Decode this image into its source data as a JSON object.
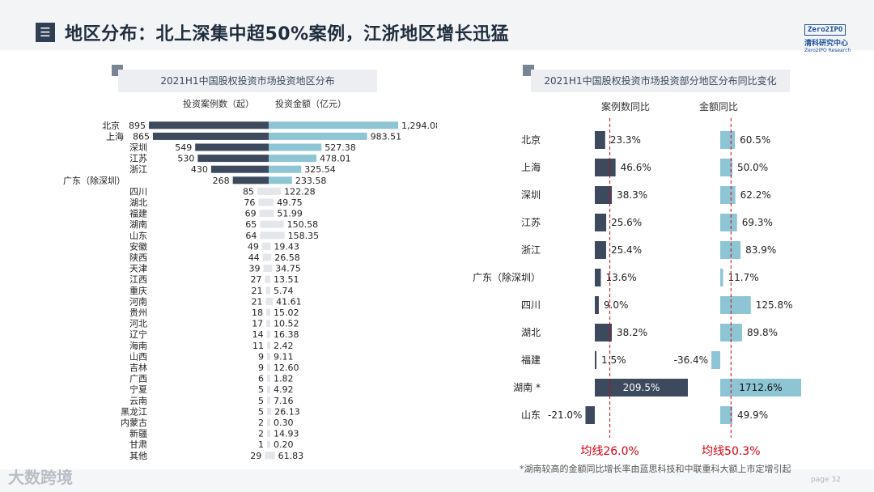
{
  "header": {
    "title": "地区分布：北上深集中超50%案例，江浙地区增长迅猛",
    "menu_icon": "menu-icon",
    "logo_box": "Zero2IPO",
    "logo_cn": "清科研究中心",
    "logo_en": "Zero2IPO Research"
  },
  "footer": {
    "watermark": "大数跨境",
    "page": "page 32",
    "note": "*湖南较高的金额同比增长率由蓝思科技和中联重科大额上市定增引起"
  },
  "colors": {
    "dark": "#3d4a5e",
    "light": "#8ec5d4",
    "faint": "#e3e6ea",
    "red": "#d7000f"
  },
  "chart_data": [
    {
      "type": "bar",
      "title": "2021H1中国股权投资市场投资地区分布",
      "orientation": "horizontal-diverging",
      "legend": [
        "投资案例数（起）",
        "投资金额（亿元）"
      ],
      "categories": [
        "北京",
        "上海",
        "深圳",
        "江苏",
        "浙江",
        "广东（除深圳）",
        "四川",
        "湖北",
        "福建",
        "湖南",
        "山东",
        "安徽",
        "陕西",
        "天津",
        "江西",
        "重庆",
        "河南",
        "贵州",
        "河北",
        "辽宁",
        "海南",
        "山西",
        "吉林",
        "广西",
        "宁夏",
        "云南",
        "黑龙江",
        "内蒙古",
        "新疆",
        "甘肃",
        "其他"
      ],
      "series": [
        {
          "name": "投资案例数（起）",
          "values": [
            895,
            865,
            549,
            530,
            430,
            268,
            85,
            76,
            69,
            65,
            64,
            49,
            44,
            39,
            27,
            21,
            21,
            18,
            17,
            14,
            11,
            9,
            9,
            6,
            5,
            5,
            5,
            2,
            2,
            1,
            29
          ],
          "labels": [
            "895",
            "865",
            "549",
            "530",
            "430",
            "268",
            "85",
            "76",
            "69",
            "65",
            "64",
            "49",
            "44",
            "39",
            "27",
            "21",
            "21",
            "18",
            "17",
            "14",
            "11",
            "9",
            "9",
            "6",
            "5",
            "5",
            "5",
            "2",
            "2",
            "1",
            "29"
          ]
        },
        {
          "name": "投资金额（亿元）",
          "values": [
            1294.08,
            983.51,
            527.38,
            478.01,
            325.54,
            233.58,
            122.28,
            49.75,
            51.99,
            150.58,
            158.35,
            19.43,
            26.58,
            34.75,
            13.51,
            5.74,
            41.61,
            15.02,
            10.52,
            16.38,
            2.42,
            9.11,
            12.6,
            1.82,
            4.92,
            7.16,
            26.13,
            0.3,
            14.93,
            0.2,
            61.83
          ],
          "labels": [
            "1,294.08",
            "983.51",
            "527.38",
            "478.01",
            "325.54",
            "233.58",
            "122.28",
            "49.75",
            "51.99",
            "150.58",
            "158.35",
            "19.43",
            "26.58",
            "34.75",
            "13.51",
            "5.74",
            "41.61",
            "15.02",
            "10.52",
            "16.38",
            "2.42",
            "9.11",
            "12.60",
            "1.82",
            "4.92",
            "7.16",
            "26.13",
            "0.30",
            "14.93",
            "0.20",
            "61.83"
          ]
        }
      ]
    },
    {
      "type": "bar",
      "title": "2021H1中国股权投资市场投资部分地区分布同比变化",
      "orientation": "horizontal",
      "categories": [
        "北京",
        "上海",
        "深圳",
        "江苏",
        "浙江",
        "广东（除深圳）",
        "四川",
        "湖北",
        "福建",
        "湖南 *",
        "山东"
      ],
      "series": [
        {
          "name": "案例数同比",
          "values": [
            23.3,
            46.6,
            38.3,
            25.6,
            25.4,
            13.6,
            9.0,
            38.2,
            1.5,
            209.5,
            -21.0
          ],
          "labels": [
            "23.3%",
            "46.6%",
            "38.3%",
            "25.6%",
            "25.4%",
            "13.6%",
            "9.0%",
            "38.2%",
            "1.5%",
            "209.5%",
            "-21.0%"
          ],
          "average": 26.0,
          "average_label": "均线26.0%"
        },
        {
          "name": "金额同比",
          "values": [
            60.5,
            50.0,
            62.2,
            69.3,
            83.9,
            11.7,
            125.8,
            89.8,
            -36.4,
            1712.6,
            49.9
          ],
          "labels": [
            "60.5%",
            "50.0%",
            "62.2%",
            "69.3%",
            "83.9%",
            "11.7%",
            "125.8%",
            "89.8%",
            "-36.4%",
            "1712.6%",
            "49.9%"
          ],
          "average": 50.3,
          "average_label": "均线50.3%"
        }
      ]
    }
  ]
}
